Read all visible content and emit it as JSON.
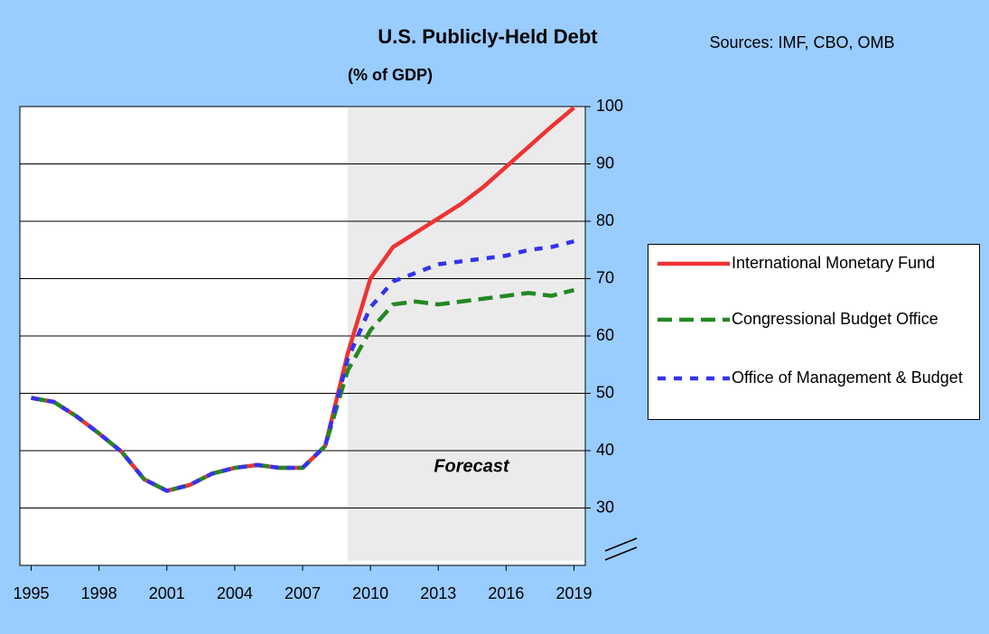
{
  "chart_data": {
    "type": "line",
    "title": "U.S. Publicly-Held Debt",
    "subtitle": "(% of GDP)",
    "source": "Sources: IMF, CBO, OMB",
    "x": [
      1995,
      1996,
      1997,
      1998,
      1999,
      2000,
      2001,
      2002,
      2003,
      2004,
      2005,
      2006,
      2007,
      2008,
      2009,
      2010,
      2011,
      2012,
      2013,
      2014,
      2015,
      2016,
      2017,
      2018,
      2019
    ],
    "series": [
      {
        "name": "International Monetary Fund",
        "color": "#ee3333",
        "values": [
          49.2,
          48.5,
          46,
          43,
          39.8,
          35,
          33,
          34,
          36,
          37,
          37.5,
          37,
          37,
          40.8,
          57,
          70,
          75.5,
          78,
          80.5,
          83,
          86,
          89.5,
          93,
          96.5,
          99.8
        ]
      },
      {
        "name": "Congressional Budget Office",
        "color": "#228822",
        "values": [
          49.2,
          48.5,
          46,
          43,
          39.8,
          35,
          33,
          34,
          36,
          37,
          37.5,
          37,
          37,
          40.8,
          54,
          61,
          65.5,
          66,
          65.5,
          66,
          66.5,
          67,
          67.5,
          67,
          68
        ]
      },
      {
        "name": "Office of Management & Budget",
        "color": "#3333ee",
        "values": [
          49.2,
          48.5,
          46,
          43,
          39.8,
          35,
          33,
          34,
          36,
          37,
          37.5,
          37,
          37,
          40.8,
          56,
          65,
          69.5,
          71,
          72.5,
          73,
          73.5,
          74,
          75,
          75.5,
          76.5
        ]
      }
    ],
    "forecast_region": {
      "label": "Forecast",
      "start": 2009
    },
    "xlim": [
      1994.5,
      2019.5
    ],
    "xticks": [
      1995,
      1998,
      2001,
      2004,
      2007,
      2010,
      2013,
      2016,
      2019
    ],
    "ylim": [
      20,
      100
    ],
    "yticks": [
      30,
      40,
      50,
      60,
      70,
      80,
      90,
      100
    ],
    "grid": true
  }
}
